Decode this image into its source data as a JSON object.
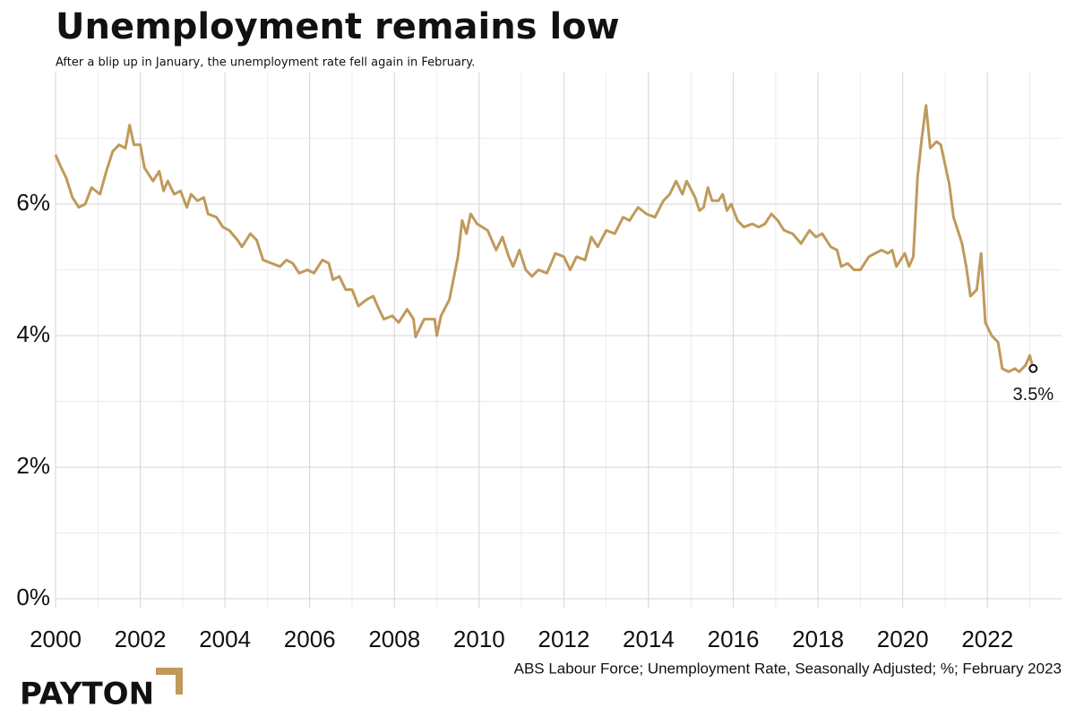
{
  "chart_data": {
    "type": "line",
    "title": "Unemployment remains low",
    "subtitle": "After a blip up in January, the unemployment rate fell again in February.",
    "source": "ABS Labour Force; Unemployment Rate, Seasonally Adjusted; %; February 2023",
    "brand": "PAYTON",
    "color": "#c09a5b",
    "x": [
      2000.0,
      2000.1,
      2000.25,
      2000.4,
      2000.55,
      2000.7,
      2000.85,
      2001.05,
      2001.2,
      2001.35,
      2001.5,
      2001.65,
      2001.75,
      2001.85,
      2002.0,
      2002.1,
      2002.3,
      2002.45,
      2002.55,
      2002.65,
      2002.8,
      2002.95,
      2003.1,
      2003.2,
      2003.35,
      2003.5,
      2003.6,
      2003.8,
      2003.95,
      2004.1,
      2004.3,
      2004.4,
      2004.6,
      2004.75,
      2004.9,
      2005.1,
      2005.3,
      2005.45,
      2005.6,
      2005.75,
      2005.95,
      2006.1,
      2006.3,
      2006.45,
      2006.55,
      2006.7,
      2006.85,
      2007.0,
      2007.15,
      2007.35,
      2007.5,
      2007.6,
      2007.75,
      2007.95,
      2008.1,
      2008.3,
      2008.45,
      2008.5,
      2008.7,
      2008.95,
      2009.0,
      2009.1,
      2009.3,
      2009.5,
      2009.6,
      2009.7,
      2009.8,
      2009.95,
      2010.2,
      2010.4,
      2010.55,
      2010.7,
      2010.8,
      2010.95,
      2011.1,
      2011.25,
      2011.4,
      2011.6,
      2011.8,
      2012.0,
      2012.15,
      2012.3,
      2012.5,
      2012.65,
      2012.8,
      2013.0,
      2013.2,
      2013.4,
      2013.55,
      2013.75,
      2013.95,
      2014.15,
      2014.35,
      2014.5,
      2014.65,
      2014.8,
      2014.9,
      2015.1,
      2015.2,
      2015.3,
      2015.4,
      2015.5,
      2015.65,
      2015.75,
      2015.85,
      2015.95,
      2016.1,
      2016.25,
      2016.45,
      2016.6,
      2016.75,
      2016.9,
      2017.05,
      2017.2,
      2017.4,
      2017.6,
      2017.8,
      2017.95,
      2018.1,
      2018.3,
      2018.45,
      2018.55,
      2018.7,
      2018.85,
      2019.0,
      2019.2,
      2019.35,
      2019.5,
      2019.65,
      2019.75,
      2019.85,
      2020.05,
      2020.15,
      2020.25,
      2020.35,
      2020.45,
      2020.55,
      2020.65,
      2020.8,
      2020.9,
      2021.1,
      2021.2,
      2021.4,
      2021.5,
      2021.6,
      2021.75,
      2021.85,
      2021.95,
      2022.1,
      2022.25,
      2022.35,
      2022.5,
      2022.65,
      2022.75,
      2022.9,
      2023.0,
      2023.08
    ],
    "values": [
      6.75,
      6.6,
      6.4,
      6.1,
      5.95,
      6.0,
      6.25,
      6.15,
      6.5,
      6.8,
      6.9,
      6.85,
      7.2,
      6.9,
      6.9,
      6.55,
      6.35,
      6.5,
      6.2,
      6.35,
      6.15,
      6.2,
      5.95,
      6.15,
      6.05,
      6.1,
      5.85,
      5.8,
      5.65,
      5.6,
      5.45,
      5.35,
      5.55,
      5.45,
      5.15,
      5.1,
      5.05,
      5.15,
      5.1,
      4.95,
      5.0,
      4.95,
      5.15,
      5.1,
      4.85,
      4.9,
      4.7,
      4.7,
      4.45,
      4.55,
      4.6,
      4.45,
      4.25,
      4.3,
      4.2,
      4.4,
      4.25,
      3.98,
      4.25,
      4.25,
      4.0,
      4.3,
      4.55,
      5.2,
      5.75,
      5.55,
      5.85,
      5.7,
      5.6,
      5.3,
      5.5,
      5.2,
      5.05,
      5.3,
      5.0,
      4.9,
      5.0,
      4.95,
      5.25,
      5.2,
      5.0,
      5.2,
      5.15,
      5.5,
      5.35,
      5.6,
      5.55,
      5.8,
      5.75,
      5.95,
      5.85,
      5.8,
      6.05,
      6.15,
      6.35,
      6.15,
      6.35,
      6.1,
      5.9,
      5.95,
      6.25,
      6.05,
      6.05,
      6.15,
      5.9,
      6.0,
      5.75,
      5.65,
      5.7,
      5.65,
      5.7,
      5.85,
      5.75,
      5.6,
      5.55,
      5.4,
      5.6,
      5.5,
      5.55,
      5.35,
      5.3,
      5.05,
      5.1,
      5.0,
      5.0,
      5.2,
      5.25,
      5.3,
      5.25,
      5.3,
      5.05,
      5.25,
      5.05,
      5.2,
      6.4,
      7.0,
      7.5,
      6.85,
      6.95,
      6.9,
      6.3,
      5.8,
      5.4,
      5.05,
      4.6,
      4.7,
      5.25,
      4.2,
      4.0,
      3.9,
      3.5,
      3.45,
      3.5,
      3.45,
      3.55,
      3.7,
      3.5
    ],
    "annotation": {
      "x": 2023.08,
      "y": 3.5,
      "label": "3.5%"
    },
    "xlim": [
      2000,
      2023.75
    ],
    "xticks": [
      2000,
      2002,
      2004,
      2006,
      2008,
      2010,
      2012,
      2014,
      2016,
      2018,
      2020,
      2022
    ],
    "minor_xticks": [
      2001,
      2003,
      2005,
      2007,
      2009,
      2011,
      2013,
      2015,
      2017,
      2019,
      2021,
      2023
    ],
    "ylim": [
      0,
      8
    ],
    "yticks": [
      {
        "value": 0,
        "label": "0%"
      },
      {
        "value": 2,
        "label": "2%"
      },
      {
        "value": 4,
        "label": "4%"
      },
      {
        "value": 6,
        "label": "6%"
      }
    ],
    "minor_yticks": [
      1,
      3,
      5,
      7
    ],
    "grid": true
  }
}
